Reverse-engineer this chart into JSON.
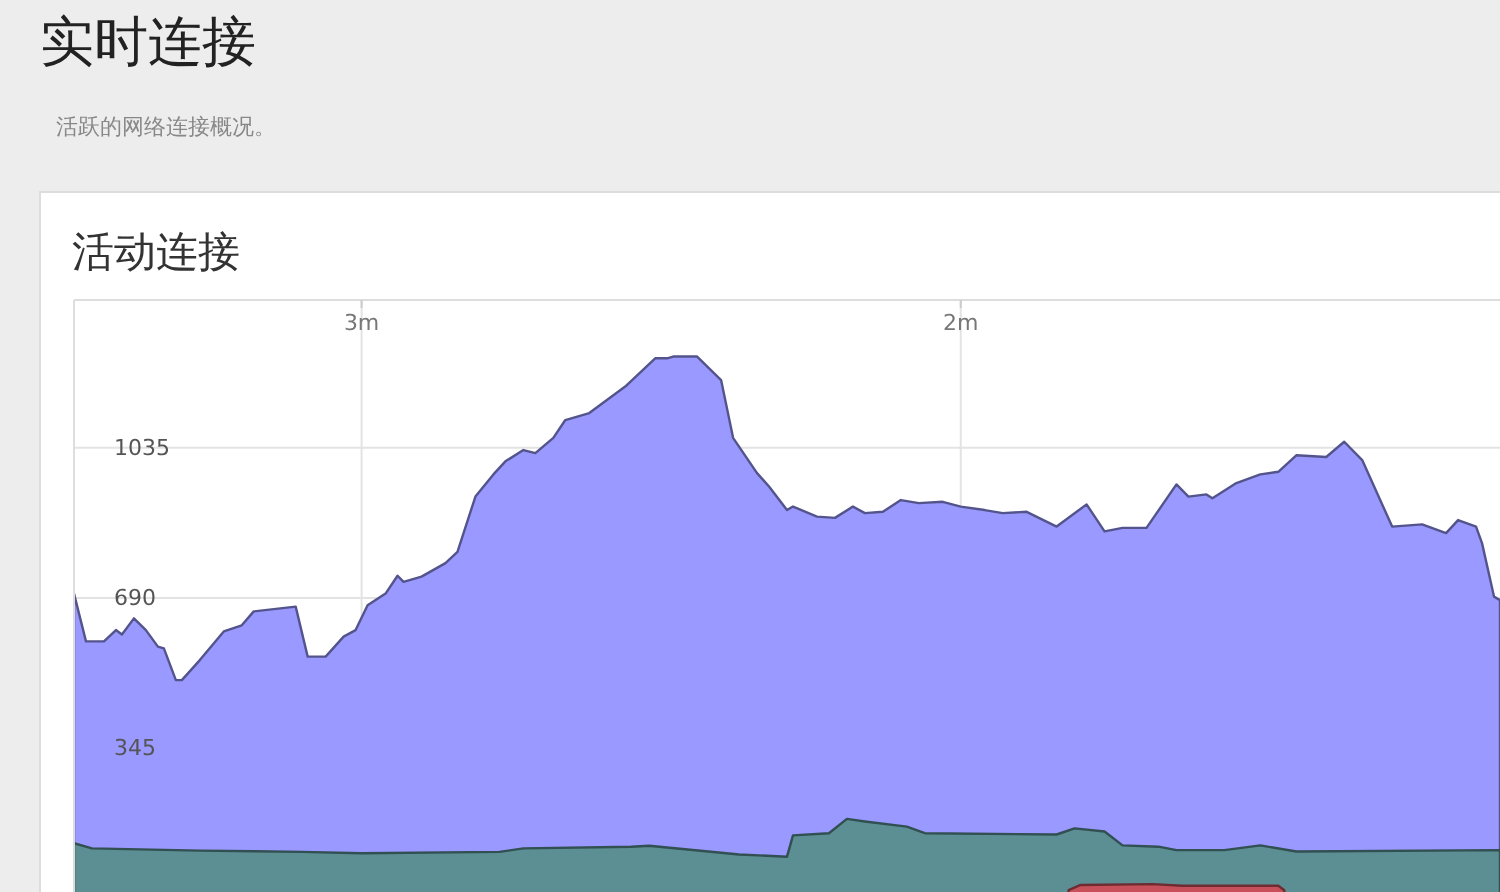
{
  "chart_data": {
    "type": "area",
    "title": "实时连接",
    "subtitle": "活跃的网络连接概况。",
    "annotations": [
      "活动连接"
    ],
    "xlim": [
      3.48,
      1.1
    ],
    "xticks": [
      {
        "value": 3,
        "label": "3m"
      },
      {
        "value": 2,
        "label": "2m"
      }
    ],
    "ylim": [
      0,
      1375
    ],
    "yticks": [
      345,
      690,
      1035
    ],
    "grid": true,
    "series": [
      {
        "color": "#9999ff",
        "x": [
          3.48,
          3.46,
          3.43,
          3.41,
          3.4,
          3.38,
          3.36,
          3.34,
          3.33,
          3.31,
          3.3,
          3.27,
          3.23,
          3.2,
          3.18,
          3.11,
          3.09,
          3.06,
          3.03,
          3.01,
          2.99,
          2.96,
          2.94,
          2.93,
          2.9,
          2.86,
          2.84,
          2.81,
          2.78,
          2.76,
          2.73,
          2.71,
          2.68,
          2.66,
          2.62,
          2.56,
          2.51,
          2.49,
          2.48,
          2.44,
          2.4,
          2.38,
          2.34,
          2.32,
          2.29,
          2.28,
          2.24,
          2.21,
          2.18,
          2.16,
          2.13,
          2.1,
          2.07,
          2.03,
          2.0,
          1.96,
          1.93,
          1.89,
          1.84,
          1.79,
          1.76,
          1.73,
          1.69,
          1.64,
          1.62,
          1.59,
          1.58,
          1.54,
          1.5,
          1.47,
          1.44,
          1.39,
          1.36,
          1.33,
          1.28,
          1.23,
          1.19,
          1.17,
          1.14,
          1.13,
          1.11,
          1.1
        ],
        "values": [
          700,
          590,
          590,
          616,
          606,
          643,
          616,
          578,
          574,
          501,
          501,
          547,
          613,
          627,
          659,
          670,
          555,
          555,
          601,
          616,
          673,
          700,
          741,
          727,
          739,
          770,
          796,
          923,
          974,
          1004,
          1030,
          1023,
          1058,
          1099,
          1115,
          1176,
          1241,
          1241,
          1245,
          1245,
          1191,
          1058,
          977,
          946,
          892,
          900,
          877,
          874,
          900,
          885,
          888,
          915,
          908,
          911,
          900,
          892,
          885,
          888,
          854,
          905,
          843,
          851,
          851,
          951,
          923,
          928,
          919,
          954,
          974,
          980,
          1018,
          1014,
          1049,
          1007,
          854,
          859,
          839,
          869,
          854,
          816,
          693,
          685
        ]
      },
      {
        "color": "#5b8f94",
        "x": [
          3.48,
          3.45,
          3.27,
          3.1,
          3.0,
          2.77,
          2.73,
          2.55,
          2.52,
          2.37,
          2.29,
          2.28,
          2.22,
          2.19,
          2.16,
          2.09,
          2.06,
          1.84,
          1.81,
          1.76,
          1.73,
          1.67,
          1.64,
          1.56,
          1.5,
          1.44,
          1.1
        ],
        "values": [
          126,
          114,
          109,
          106,
          103,
          106,
          114,
          118,
          120,
          100,
          95,
          144,
          149,
          182,
          176,
          164,
          149,
          146,
          160,
          153,
          121,
          118,
          110,
          110,
          121,
          107,
          110
        ]
      },
      {
        "color": "#c8505a",
        "x": [
          1.82,
          1.8,
          1.68,
          1.63,
          1.47,
          1.46
        ],
        "values": [
          18,
          30,
          32,
          28,
          28,
          18
        ]
      }
    ]
  }
}
